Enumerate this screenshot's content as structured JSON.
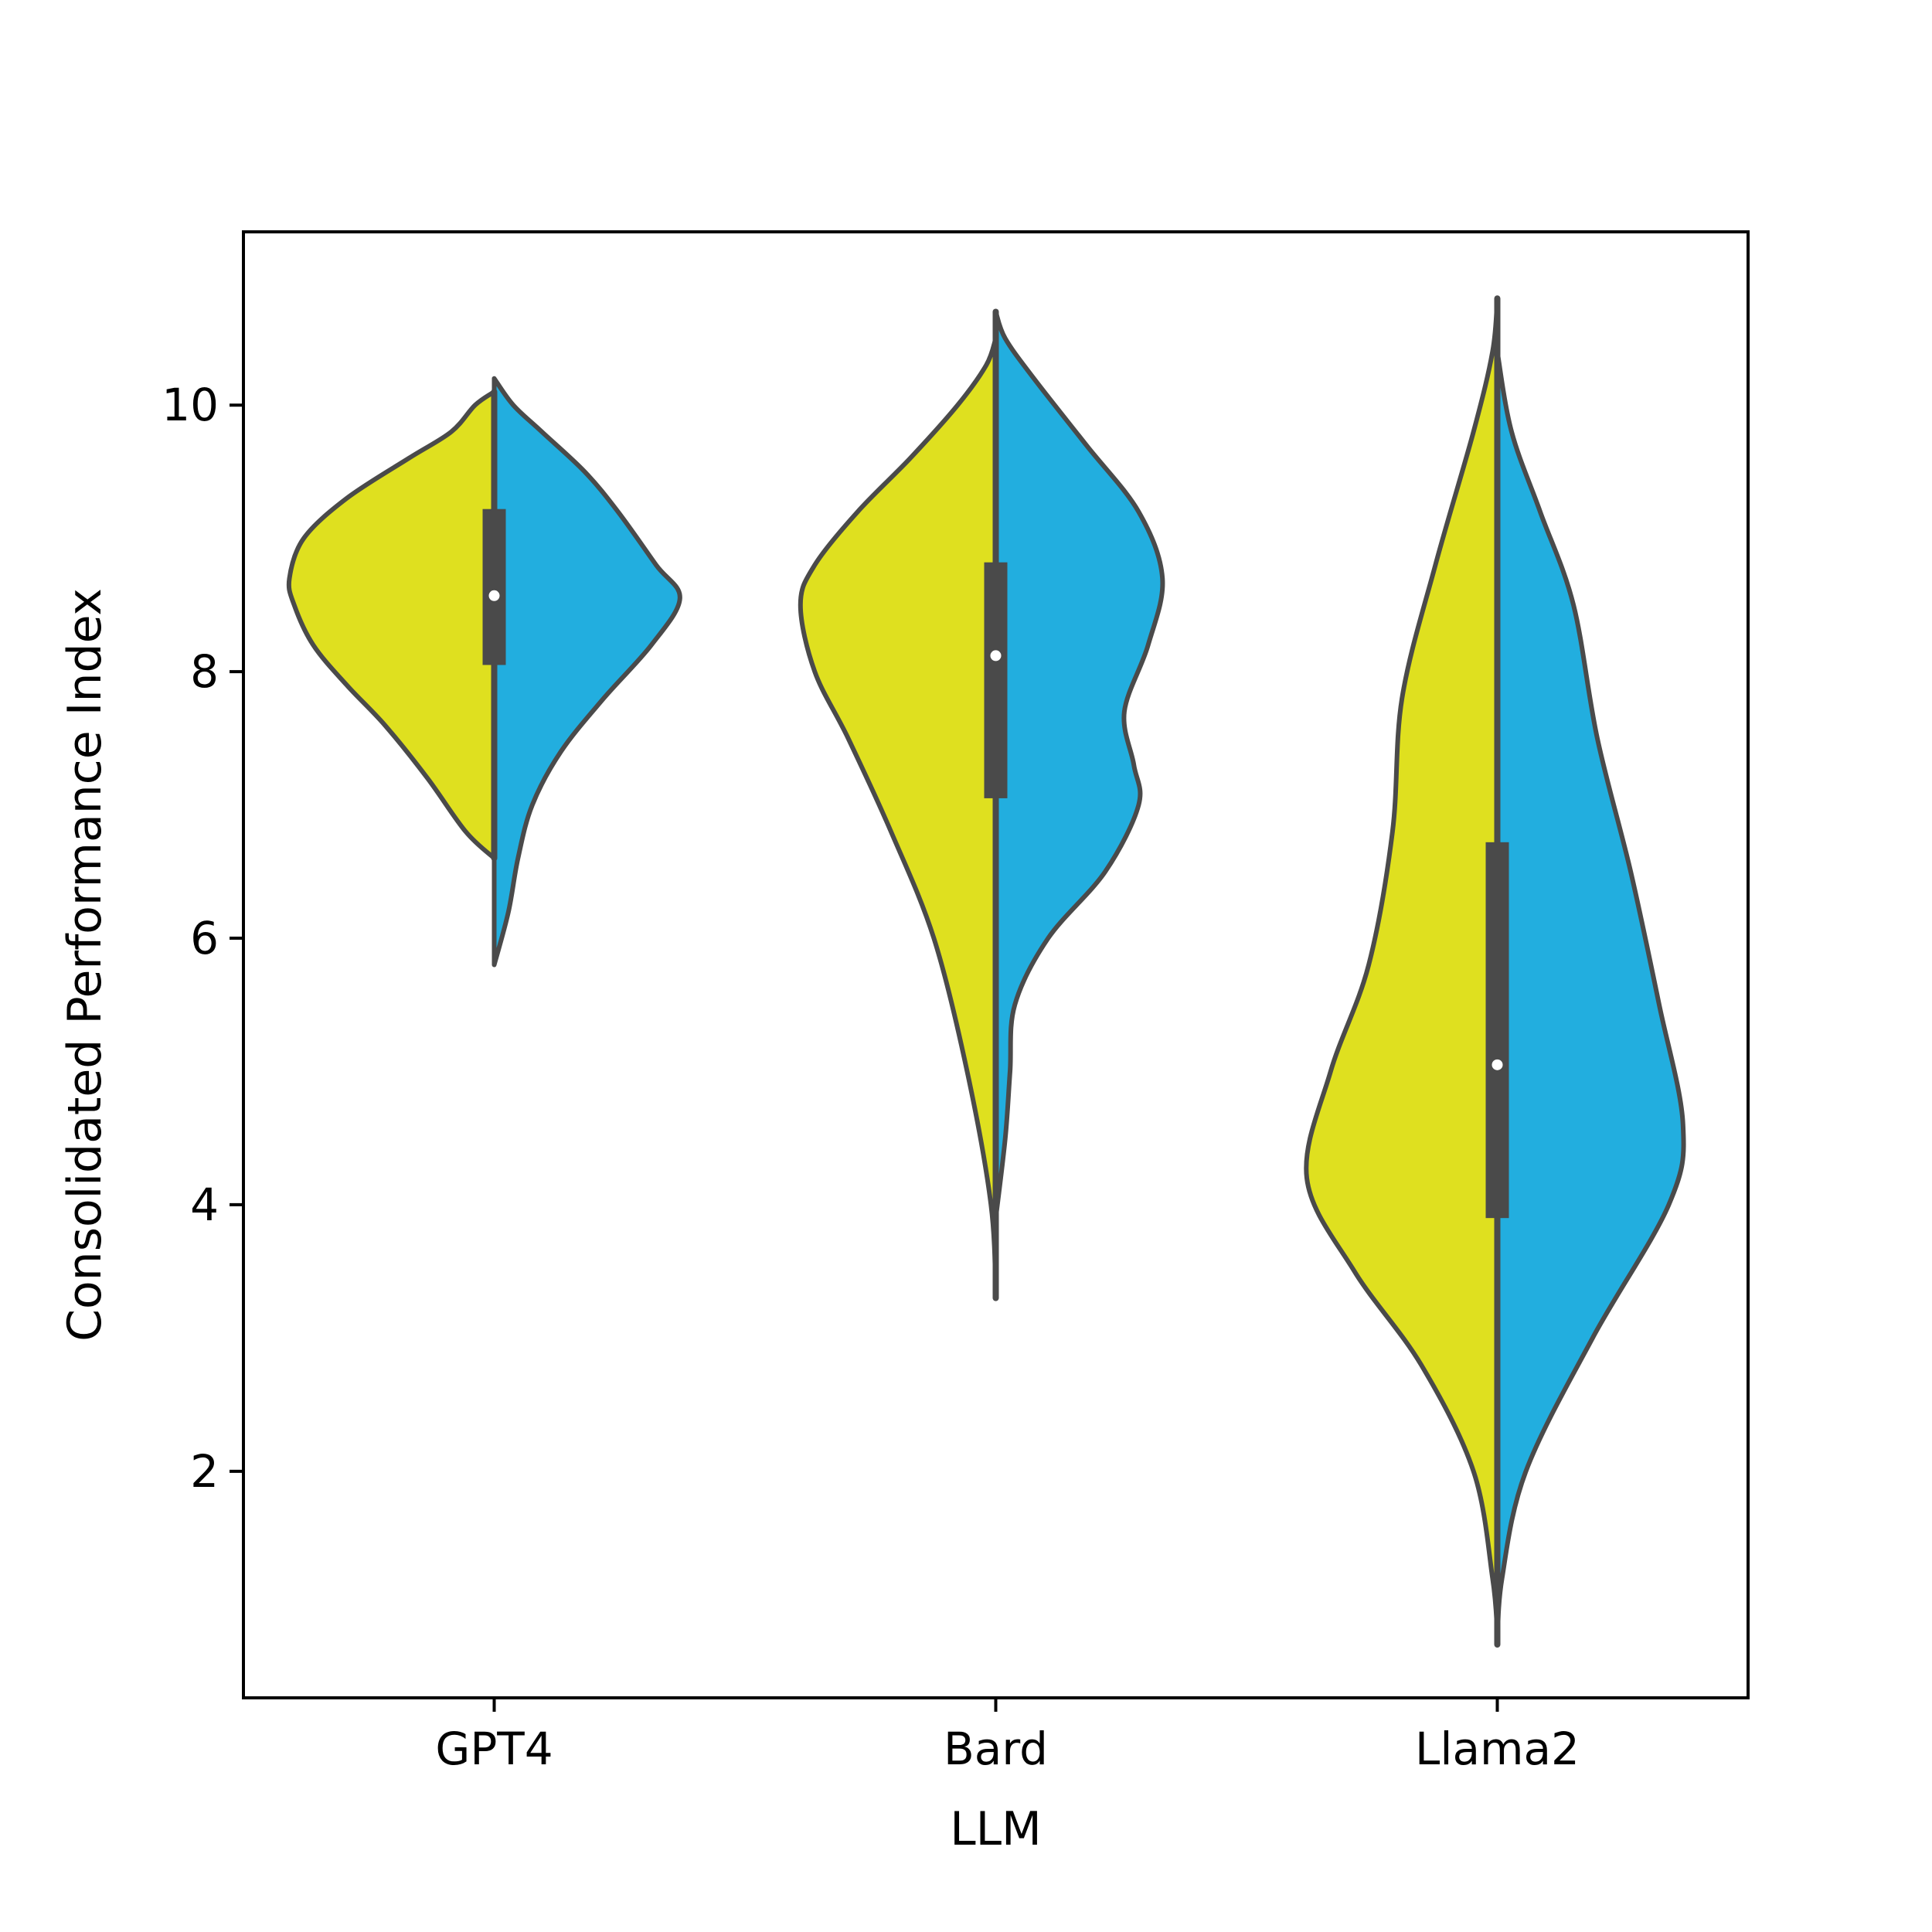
{
  "chart_data": {
    "type": "violin",
    "split": true,
    "xlabel": "LLM",
    "ylabel": "Consolidated Performance Index",
    "categories": [
      "GPT4",
      "Bard",
      "Llama2"
    ],
    "ylim": [
      0.3,
      11.3
    ],
    "yticks": [
      2,
      4,
      6,
      8,
      10
    ],
    "colors": {
      "left": "#dfe01f",
      "right": "#22aedf",
      "outline": "#4a4a4a",
      "median": "#ffffff"
    },
    "violins": [
      {
        "category": "GPT4",
        "left": {
          "range": [
            6.6,
            10.1
          ],
          "density": [
            [
              6.6,
              0.0
            ],
            [
              6.8,
              0.06
            ],
            [
              7.2,
              0.14
            ],
            [
              7.6,
              0.23
            ],
            [
              7.9,
              0.31
            ],
            [
              8.2,
              0.38
            ],
            [
              8.5,
              0.42
            ],
            [
              8.7,
              0.43
            ],
            [
              9.0,
              0.4
            ],
            [
              9.3,
              0.31
            ],
            [
              9.6,
              0.18
            ],
            [
              9.8,
              0.09
            ],
            [
              10.0,
              0.04
            ],
            [
              10.1,
              0.0
            ]
          ]
        },
        "right": {
          "range": [
            5.8,
            10.2
          ],
          "density": [
            [
              5.8,
              0.0
            ],
            [
              6.2,
              0.03
            ],
            [
              6.6,
              0.05
            ],
            [
              7.0,
              0.08
            ],
            [
              7.4,
              0.14
            ],
            [
              7.8,
              0.23
            ],
            [
              8.2,
              0.33
            ],
            [
              8.55,
              0.39
            ],
            [
              8.8,
              0.34
            ],
            [
              9.2,
              0.26
            ],
            [
              9.5,
              0.19
            ],
            [
              9.8,
              0.1
            ],
            [
              10.0,
              0.04
            ],
            [
              10.2,
              0.0
            ]
          ]
        },
        "box": {
          "q1": 8.05,
          "median": 8.57,
          "q3": 9.22,
          "whisker_low": 6.6,
          "whisker_high": 10.1
        }
      },
      {
        "category": "Bard",
        "left": {
          "range": [
            3.3,
            10.5
          ],
          "density": [
            [
              3.3,
              0.0
            ],
            [
              4.0,
              0.01
            ],
            [
              5.0,
              0.06
            ],
            [
              6.0,
              0.13
            ],
            [
              6.8,
              0.22
            ],
            [
              7.5,
              0.31
            ],
            [
              8.0,
              0.38
            ],
            [
              8.5,
              0.41
            ],
            [
              8.8,
              0.38
            ],
            [
              9.2,
              0.29
            ],
            [
              9.6,
              0.18
            ],
            [
              10.0,
              0.08
            ],
            [
              10.3,
              0.02
            ],
            [
              10.5,
              0.0
            ]
          ]
        },
        "right": {
          "range": [
            3.9,
            10.7
          ],
          "density": [
            [
              3.9,
              0.0
            ],
            [
              4.5,
              0.02
            ],
            [
              5.0,
              0.03
            ],
            [
              5.5,
              0.04
            ],
            [
              6.0,
              0.11
            ],
            [
              6.5,
              0.23
            ],
            [
              7.0,
              0.3
            ],
            [
              7.3,
              0.29
            ],
            [
              7.7,
              0.27
            ],
            [
              8.2,
              0.32
            ],
            [
              8.7,
              0.35
            ],
            [
              9.2,
              0.3
            ],
            [
              9.7,
              0.19
            ],
            [
              10.2,
              0.08
            ],
            [
              10.5,
              0.02
            ],
            [
              10.7,
              0.0
            ]
          ]
        },
        "box": {
          "q1": 7.05,
          "median": 8.12,
          "q3": 8.82,
          "whisker_low": 3.3,
          "whisker_high": 10.7
        }
      },
      {
        "category": "Llama2",
        "left": {
          "range": [
            0.8,
            10.8
          ],
          "density": [
            [
              0.8,
              0.0
            ],
            [
              1.2,
              0.01
            ],
            [
              2.0,
              0.05
            ],
            [
              2.8,
              0.16
            ],
            [
              3.5,
              0.3
            ],
            [
              4.2,
              0.4
            ],
            [
              5.0,
              0.35
            ],
            [
              5.8,
              0.27
            ],
            [
              6.8,
              0.22
            ],
            [
              7.8,
              0.2
            ],
            [
              8.8,
              0.13
            ],
            [
              9.8,
              0.05
            ],
            [
              10.4,
              0.01
            ],
            [
              10.8,
              0.0
            ]
          ]
        },
        "right": {
          "range": [
            0.7,
            10.4
          ],
          "density": [
            [
              0.7,
              0.0
            ],
            [
              1.2,
              0.01
            ],
            [
              2.0,
              0.06
            ],
            [
              3.0,
              0.2
            ],
            [
              4.0,
              0.36
            ],
            [
              4.6,
              0.39
            ],
            [
              5.5,
              0.34
            ],
            [
              6.5,
              0.28
            ],
            [
              7.5,
              0.21
            ],
            [
              8.5,
              0.16
            ],
            [
              9.2,
              0.09
            ],
            [
              9.8,
              0.03
            ],
            [
              10.4,
              0.0
            ]
          ]
        },
        "box": {
          "q1": 3.9,
          "median": 5.05,
          "q3": 6.72,
          "whisker_low": 0.7,
          "whisker_high": 10.8
        }
      }
    ]
  }
}
